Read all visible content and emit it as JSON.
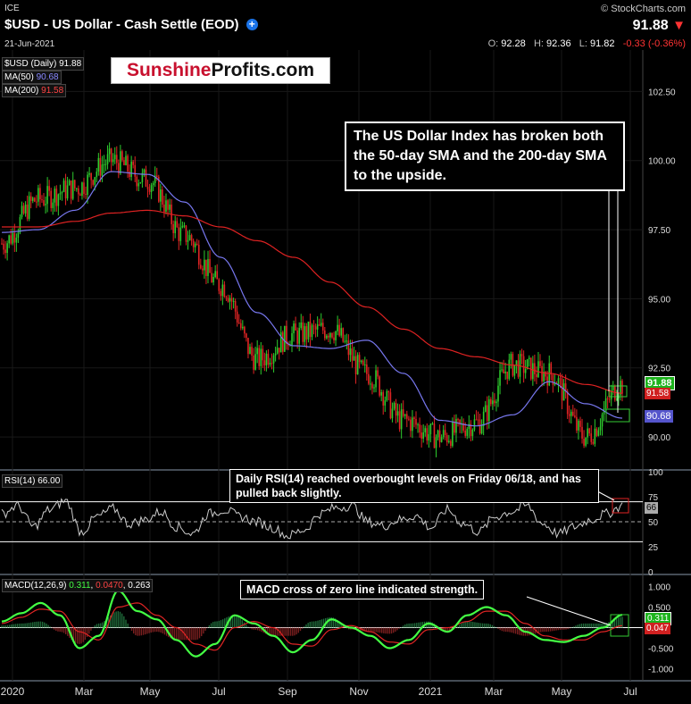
{
  "header": {
    "exchange": "ICE",
    "title": "$USD - US Dollar - Cash Settle (EOD)",
    "date": "21-Jun-2021",
    "watermark": "© StockCharts.com",
    "last": "91.88",
    "ohlc": {
      "o_label": "O:",
      "o": "92.28",
      "h_label": "H:",
      "h": "92.36",
      "l_label": "L:",
      "l": "91.82",
      "change": "-0.33 (-0.36%)"
    },
    "colors": {
      "down": "#ff3333",
      "plus": "#1a73e8"
    }
  },
  "logo": {
    "part1": "Sunshine",
    "part2": "Profits.com"
  },
  "annotations": {
    "price": "The US Dollar Index has broken both the 50-day SMA and the 200-day SMA to the upside.",
    "rsi": "Daily RSI(14) reached overbought levels on Friday 06/18, and has pulled back slightly.",
    "macd": "MACD cross of zero line indicated strength."
  },
  "panels": {
    "price": {
      "legend": [
        {
          "label": "$USD (Daily) 91.88",
          "color": "#ffffff"
        },
        {
          "label": "MA(50)",
          "value": "90.68",
          "color": "#8888ff"
        },
        {
          "label": "MA(200)",
          "value": "91.58",
          "color": "#ff4444"
        }
      ],
      "last_tag": "91.88",
      "ma50_tag": "90.68",
      "ma200_tag": "91.58"
    },
    "rsi": {
      "legend": "RSI(14) 66.00",
      "last_tag": "66"
    },
    "macd": {
      "legend_label": "MACD(12,26,9)",
      "legend_macd": "0.311",
      "legend_signal": "0.0470",
      "legend_hist": "0.263",
      "tag_macd": "0.311",
      "tag_hist": "0.047"
    }
  },
  "chart_data": [
    {
      "type": "candlestick",
      "title": "$USD (Daily)",
      "x_ticks": [
        "2020",
        "Mar",
        "May",
        "Jul",
        "Sep",
        "Nov",
        "2021",
        "Mar",
        "May",
        "Jul"
      ],
      "y_ticks": [
        "90.00",
        "92.50",
        "95.00",
        "97.50",
        "100.00",
        "102.50"
      ],
      "ylim": [
        89.0,
        104.0
      ],
      "series": [
        {
          "name": "$USD",
          "x": [
            "2020-01",
            "2020-02",
            "2020-03",
            "2020-04",
            "2020-05",
            "2020-06",
            "2020-07",
            "2020-08",
            "2020-09",
            "2020-10",
            "2020-11",
            "2020-12",
            "2021-01",
            "2021-02",
            "2021-03",
            "2021-04",
            "2021-05",
            "2021-06"
          ],
          "values": [
            97.0,
            98.6,
            99.0,
            100.0,
            99.3,
            97.3,
            95.5,
            92.8,
            93.7,
            93.9,
            92.3,
            90.6,
            90.0,
            90.5,
            92.6,
            92.3,
            90.0,
            91.9
          ]
        },
        {
          "name": "MA(50)",
          "values": [
            97.4,
            97.5,
            98.2,
            99.6,
            99.5,
            98.5,
            96.5,
            94.5,
            93.3,
            93.2,
            93.5,
            92.3,
            90.6,
            90.4,
            90.8,
            92.0,
            91.2,
            90.68
          ]
        },
        {
          "name": "MA(200)",
          "values": [
            97.6,
            97.6,
            97.8,
            98.1,
            98.2,
            98.0,
            97.6,
            97.1,
            96.5,
            95.6,
            94.7,
            93.9,
            93.2,
            92.9,
            92.6,
            92.3,
            91.9,
            91.58
          ]
        }
      ]
    },
    {
      "type": "line",
      "title": "RSI(14)",
      "y_ticks": [
        "0",
        "25",
        "50",
        "75",
        "100"
      ],
      "ylim": [
        0,
        100
      ],
      "reference_lines": [
        30,
        50,
        70
      ],
      "values": [
        58,
        66,
        45,
        62,
        71,
        40,
        55,
        63,
        48,
        52,
        60,
        45,
        38,
        58,
        62,
        55,
        50,
        44,
        36,
        42,
        58,
        64,
        66,
        50,
        46,
        52,
        56,
        44,
        62,
        48,
        40,
        55,
        60,
        66,
        48,
        38,
        45,
        52,
        58,
        66
      ]
    },
    {
      "type": "line",
      "title": "MACD(12,26,9)",
      "y_ticks": [
        "-1.000",
        "-0.500",
        "0.000",
        "0.500",
        "1.000"
      ],
      "ylim": [
        -1.25,
        1.25
      ],
      "series": [
        {
          "name": "MACD",
          "values": [
            0.15,
            0.35,
            0.6,
            0.3,
            -0.5,
            -0.2,
            0.9,
            0.4,
            0.2,
            -0.3,
            -0.7,
            -0.4,
            0.3,
            0.1,
            -0.2,
            -0.6,
            -0.3,
            0.2,
            0.0,
            -0.2,
            -0.5,
            -0.3,
            0.1,
            -0.1,
            0.3,
            0.5,
            0.3,
            -0.1,
            -0.3,
            -0.35,
            -0.2,
            0.0,
            0.311
          ]
        },
        {
          "name": "Signal",
          "values": [
            0.1,
            0.25,
            0.45,
            0.4,
            -0.1,
            -0.3,
            0.5,
            0.6,
            0.3,
            0.0,
            -0.4,
            -0.55,
            0.0,
            0.15,
            0.0,
            -0.4,
            -0.45,
            -0.05,
            0.05,
            -0.1,
            -0.35,
            -0.4,
            -0.05,
            0.0,
            0.15,
            0.4,
            0.4,
            0.1,
            -0.2,
            -0.3,
            -0.3,
            -0.1,
            0.047
          ]
        }
      ]
    }
  ]
}
